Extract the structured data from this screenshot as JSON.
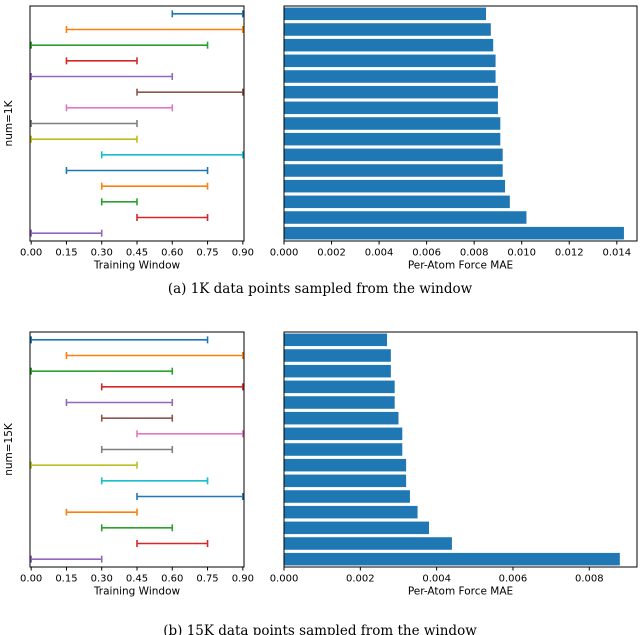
{
  "captions": {
    "a": "(a) 1K data points sampled from the window",
    "b": "(b) 15K data points sampled from the window"
  },
  "colors": {
    "bar": "#1f77b4",
    "cycle": [
      "#1f77b4",
      "#ff7f0e",
      "#2ca02c",
      "#d62728",
      "#9467bd",
      "#8c564b",
      "#e377c2",
      "#7f7f7f",
      "#bcbd22",
      "#17becf"
    ]
  },
  "chart_data": [
    {
      "id": "a-intervals",
      "type": "interval",
      "title": "",
      "ylabel": "num=1K",
      "xlabel": "Training Window",
      "xlim": [
        -0.005,
        0.905
      ],
      "xticks": [
        0.0,
        0.15,
        0.3,
        0.45,
        0.6,
        0.75,
        0.9
      ],
      "xtick_labels": [
        "0.00",
        "0.15",
        "0.30",
        "0.45",
        "0.60",
        "0.75",
        "0.90"
      ],
      "intervals": [
        [
          0.6,
          0.9
        ],
        [
          0.15,
          0.9
        ],
        [
          0.0,
          0.75
        ],
        [
          0.15,
          0.45
        ],
        [
          0.0,
          0.6
        ],
        [
          0.45,
          0.9
        ],
        [
          0.15,
          0.6
        ],
        [
          0.0,
          0.45
        ],
        [
          0.0,
          0.45
        ],
        [
          0.3,
          0.9
        ],
        [
          0.15,
          0.75
        ],
        [
          0.3,
          0.75
        ],
        [
          0.3,
          0.45
        ],
        [
          0.45,
          0.75
        ],
        [
          0.0,
          0.3
        ]
      ]
    },
    {
      "id": "a-mae",
      "type": "bar",
      "orientation": "horizontal",
      "title": "",
      "ylabel": "",
      "xlabel": "Per-Atom Force MAE",
      "xlim": [
        0.0,
        0.01485
      ],
      "xticks": [
        0.0,
        0.002,
        0.004,
        0.006,
        0.008,
        0.01,
        0.012,
        0.014
      ],
      "xtick_labels": [
        "0.000",
        "0.002",
        "0.004",
        "0.006",
        "0.008",
        "0.010",
        "0.012",
        "0.014"
      ],
      "values": [
        0.0085,
        0.0087,
        0.0088,
        0.0089,
        0.0089,
        0.009,
        0.009,
        0.0091,
        0.0091,
        0.0092,
        0.0092,
        0.0093,
        0.0095,
        0.0102,
        0.0143
      ]
    },
    {
      "id": "b-intervals",
      "type": "interval",
      "title": "",
      "ylabel": "num=15K",
      "xlabel": "Training Window",
      "xlim": [
        -0.005,
        0.905
      ],
      "xticks": [
        0.0,
        0.15,
        0.3,
        0.45,
        0.6,
        0.75,
        0.9
      ],
      "xtick_labels": [
        "0.00",
        "0.15",
        "0.30",
        "0.45",
        "0.60",
        "0.75",
        "0.90"
      ],
      "intervals": [
        [
          0.0,
          0.75
        ],
        [
          0.15,
          0.9
        ],
        [
          0.0,
          0.6
        ],
        [
          0.3,
          0.9
        ],
        [
          0.15,
          0.6
        ],
        [
          0.3,
          0.6
        ],
        [
          0.45,
          0.9
        ],
        [
          0.3,
          0.6
        ],
        [
          0.0,
          0.45
        ],
        [
          0.3,
          0.75
        ],
        [
          0.45,
          0.9
        ],
        [
          0.15,
          0.45
        ],
        [
          0.3,
          0.6
        ],
        [
          0.45,
          0.75
        ],
        [
          0.0,
          0.3
        ]
      ]
    },
    {
      "id": "b-mae",
      "type": "bar",
      "orientation": "horizontal",
      "title": "",
      "ylabel": "",
      "xlabel": "Per-Atom Force MAE",
      "xlim": [
        0.0,
        0.00925
      ],
      "xticks": [
        0.0,
        0.002,
        0.004,
        0.006,
        0.008
      ],
      "xtick_labels": [
        "0.000",
        "0.002",
        "0.004",
        "0.006",
        "0.008"
      ],
      "values": [
        0.0027,
        0.0028,
        0.0028,
        0.0029,
        0.0029,
        0.003,
        0.0031,
        0.0031,
        0.0032,
        0.0032,
        0.0033,
        0.0035,
        0.0038,
        0.0044,
        0.0088
      ]
    }
  ]
}
